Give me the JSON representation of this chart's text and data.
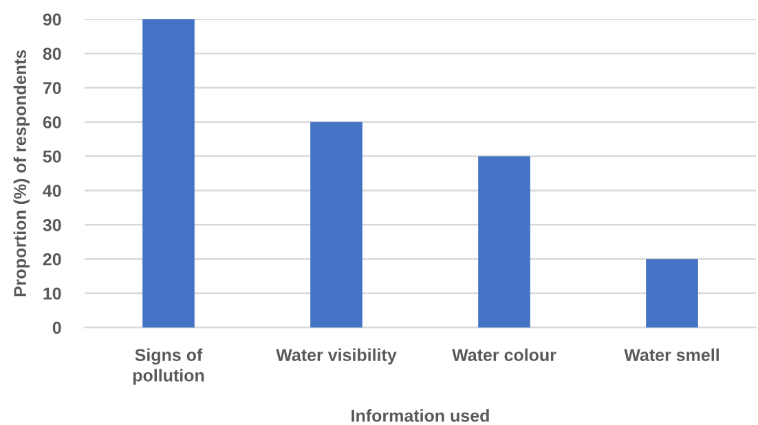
{
  "chart_data": {
    "type": "bar",
    "xlabel": "Information used",
    "ylabel": "Proportion (%) of respondents",
    "categories": [
      "Signs of pollution",
      "Water visibility",
      "Water colour",
      "Water smell"
    ],
    "values": [
      90,
      60,
      50,
      20
    ],
    "color": "#4472c4",
    "ylim": [
      0,
      90
    ],
    "yticks": [
      0,
      10,
      20,
      30,
      40,
      50,
      60,
      70,
      80,
      90
    ],
    "grid": "y"
  }
}
